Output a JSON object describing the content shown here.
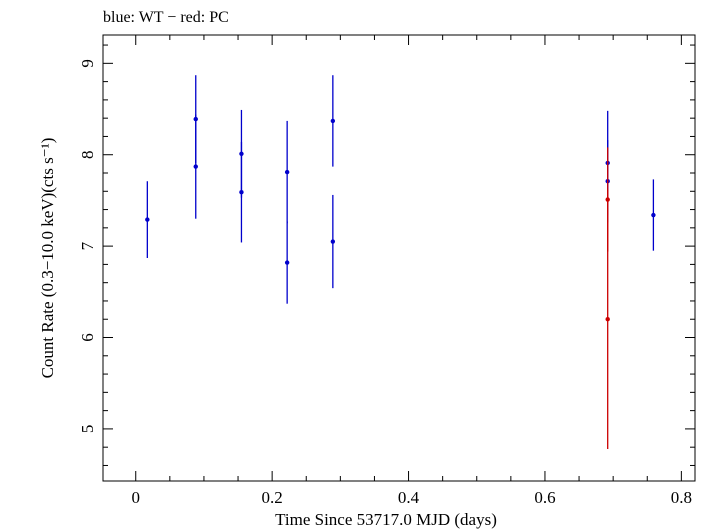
{
  "chart_data": {
    "type": "scatter",
    "title": "blue: WT − red: PC",
    "xlabel": "Time Since 53717.0 MJD (days)",
    "ylabel": "Count Rate (0.3−10.0 keV)(cts s⁻¹)",
    "xlim": [
      -0.048,
      0.82
    ],
    "ylim": [
      4.43,
      9.31
    ],
    "xticks": [
      0,
      0.2,
      0.4,
      0.6,
      0.8
    ],
    "xtick_labels": [
      "0",
      "0.2",
      "0.4",
      "0.6",
      "0.8"
    ],
    "yticks": [
      5,
      6,
      7,
      8,
      9
    ],
    "ytick_labels": [
      "5",
      "6",
      "7",
      "8",
      "9"
    ],
    "grid": false,
    "series": [
      {
        "color": "#0000cc",
        "points": [
          {
            "x": 0.017,
            "y": 7.29,
            "err": 0.42
          },
          {
            "x": 0.088,
            "y": 8.39,
            "err": 0.48
          },
          {
            "x": 0.088,
            "y": 7.87,
            "err": 0.57
          },
          {
            "x": 0.155,
            "y": 8.01,
            "err": 0.48
          },
          {
            "x": 0.155,
            "y": 7.59,
            "err": 0.55
          },
          {
            "x": 0.222,
            "y": 7.81,
            "err": 0.56
          },
          {
            "x": 0.222,
            "y": 6.82,
            "err": 0.45
          },
          {
            "x": 0.289,
            "y": 8.37,
            "err": 0.5
          },
          {
            "x": 0.289,
            "y": 7.05,
            "err": 0.51
          },
          {
            "x": 0.692,
            "y": 7.91,
            "err": 0.57
          },
          {
            "x": 0.692,
            "y": 7.71,
            "err": 0.45
          },
          {
            "x": 0.759,
            "y": 7.34,
            "err": 0.39
          }
        ]
      },
      {
        "color": "#cc0000",
        "points": [
          {
            "x": 0.692,
            "y": 7.51,
            "err": 0.57
          },
          {
            "x": 0.692,
            "y": 6.2,
            "err": 1.42
          }
        ]
      }
    ]
  }
}
